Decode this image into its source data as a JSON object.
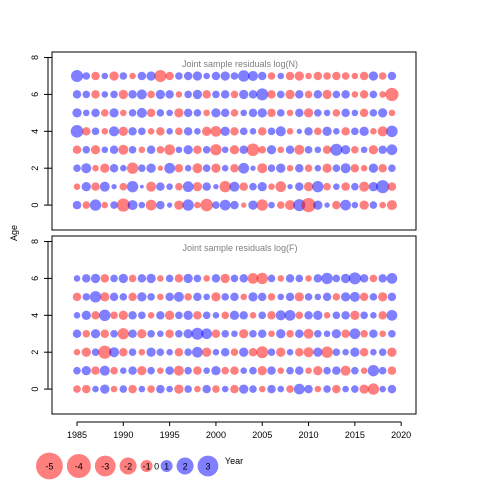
{
  "chart_data": {
    "type": "scatter",
    "ylabel": "Age",
    "xlabel": "Year",
    "x_ticks": [
      1985,
      1990,
      1995,
      2000,
      2005,
      2010,
      2015,
      2020
    ],
    "y_ticks": [
      0,
      2,
      4,
      6,
      8
    ],
    "xlim": [
      1982.3,
      2021.6
    ],
    "ylim": [
      -1.35,
      8.3
    ],
    "colors": {
      "positive": "#0000FF",
      "negative": "#FF0000"
    },
    "panels": [
      {
        "title": "Joint sample residuals log(N)",
        "ages": [
          0,
          1,
          2,
          3,
          4,
          5,
          6,
          7
        ],
        "years": [
          1985,
          2019
        ],
        "residuals": [
          [
            0.5,
            -0.4,
            0.9,
            -0.3,
            0.4,
            -1.2,
            0.7,
            0.3,
            -0.8,
            0.5,
            0.2,
            -0.6,
            0.9,
            -0.3,
            -1.1,
            0.4,
            0.8,
            0.5,
            -0.2,
            0.6,
            -0.9,
            0.3,
            -0.4,
            -0.7,
            1.0,
            -1.4,
            0.6,
            0.2,
            -0.5,
            0.8,
            0.3,
            -0.6,
            0.4,
            -0.3,
            -0.7
          ],
          [
            -0.3,
            0.6,
            -0.5,
            0.7,
            0.2,
            -0.4,
            0.9,
            0.1,
            -0.7,
            0.5,
            0.3,
            -0.4,
            0.8,
            -0.6,
            0.5,
            0.2,
            -0.9,
            0.7,
            -0.5,
            0.4,
            0.6,
            -0.3,
            -0.8,
            0.2,
            0.5,
            -0.6,
            0.9,
            -0.4,
            0.3,
            -0.5,
            0.4,
            -0.7,
            0.6,
            1.2,
            -0.5
          ],
          [
            0.4,
            0.7,
            -0.3,
            -0.6,
            0.5,
            0.3,
            -0.9,
            0.4,
            0.6,
            -0.2,
            0.8,
            -0.5,
            0.3,
            -0.7,
            0.4,
            -0.6,
            0.3,
            -0.5,
            0.8,
            0.2,
            -0.7,
            0.4,
            0.6,
            -0.3,
            0.5,
            -0.4,
            0.3,
            -0.6,
            0.4,
            0.7,
            -0.5,
            -0.3,
            0.6,
            -0.5,
            0.4
          ],
          [
            -0.5,
            0.4,
            -0.6,
            0.3,
            0.5,
            -0.7,
            0.4,
            -0.3,
            0.5,
            -0.4,
            -0.8,
            0.3,
            0.6,
            -0.5,
            0.4,
            -0.9,
            0.3,
            -0.6,
            0.5,
            -1.1,
            -0.4,
            0.6,
            -0.3,
            0.5,
            -0.7,
            0.4,
            0.3,
            -0.5,
            1.0,
            0.6,
            -0.4,
            0.3,
            -0.6,
            0.5,
            0.8
          ],
          [
            1.1,
            -0.5,
            0.4,
            -0.3,
            0.7,
            -0.6,
            0.5,
            0.4,
            -0.3,
            -0.5,
            0.3,
            -0.4,
            0.5,
            0.3,
            -0.6,
            -0.8,
            0.6,
            -0.5,
            0.4,
            0.3,
            -0.5,
            0.4,
            0.7,
            -0.3,
            0.2,
            0.5,
            -0.4,
            0.6,
            0.3,
            -0.5,
            0.4,
            0.6,
            -0.3,
            -0.7,
            0.9
          ],
          [
            0.6,
            0.3,
            0.5,
            -0.4,
            0.6,
            -0.3,
            0.4,
            0.7,
            -0.5,
            0.4,
            0.3,
            -0.6,
            0.5,
            0.4,
            -0.3,
            0.6,
            0.5,
            -0.4,
            0.3,
            0.5,
            0.6,
            -0.5,
            0.4,
            -0.3,
            0.5,
            -0.6,
            0.4,
            0.3,
            -0.4,
            0.5,
            0.3,
            -0.5,
            0.4,
            0.6,
            -0.3
          ],
          [
            0.5,
            0.4,
            -0.5,
            0.3,
            0.4,
            -0.6,
            0.5,
            0.7,
            -0.4,
            0.6,
            0.5,
            -0.3,
            0.4,
            0.6,
            -0.5,
            0.4,
            0.5,
            -0.4,
            0.6,
            0.5,
            1.0,
            -0.5,
            0.4,
            -0.6,
            0.5,
            -0.4,
            0.5,
            -0.6,
            0.4,
            0.5,
            -0.3,
            -0.5,
            0.4,
            -0.3,
            -1.2
          ],
          [
            1.0,
            0.4,
            -0.5,
            0.3,
            -0.6,
            0.4,
            -0.3,
            0.5,
            0.6,
            -1.0,
            -0.5,
            0.4,
            0.5,
            0.6,
            0.3,
            0.5,
            0.6,
            0.4,
            0.9,
            0.7,
            0.5,
            -0.4,
            0.3,
            -0.5,
            -0.6,
            -0.3,
            -0.5,
            -0.4,
            -0.5,
            -0.4,
            -0.3,
            -0.5,
            0.6,
            -0.4,
            0.5
          ]
        ]
      },
      {
        "title": "Joint sample residuals log(F)",
        "ages": [
          0,
          1,
          2,
          3,
          4,
          5,
          6
        ],
        "years": [
          1985,
          2019
        ],
        "residuals": [
          [
            -0.4,
            -0.5,
            0.3,
            0.6,
            -0.3,
            0.4,
            -0.5,
            0.3,
            -0.4,
            0.5,
            0.3,
            -0.6,
            0.4,
            -0.3,
            0.5,
            -0.4,
            0.3,
            -0.5,
            0.6,
            0.4,
            -0.3,
            0.5,
            0.3,
            -0.4,
            0.8,
            0.5,
            -0.3,
            0.4,
            -0.5,
            0.3,
            0.4,
            -0.6,
            -0.9,
            0.3,
            0.5
          ],
          [
            0.4,
            0.6,
            -0.5,
            0.7,
            -0.4,
            0.3,
            0.5,
            -0.6,
            0.4,
            -0.3,
            0.5,
            -0.7,
            0.4,
            -0.5,
            0.3,
            0.6,
            -0.4,
            -0.5,
            0.3,
            0.4,
            -0.6,
            0.5,
            -0.3,
            0.4,
            0.5,
            -0.3,
            -0.6,
            0.4,
            0.5,
            -0.7,
            0.4,
            -0.3,
            0.9,
            0.4,
            -0.5
          ],
          [
            -0.3,
            -0.6,
            0.4,
            -1.2,
            0.7,
            -0.5,
            0.4,
            -0.3,
            0.6,
            0.4,
            0.3,
            -0.5,
            0.4,
            0.8,
            -0.6,
            0.3,
            0.5,
            -0.4,
            0.6,
            -0.5,
            -1.0,
            0.4,
            -0.6,
            0.3,
            -0.5,
            -0.7,
            0.6,
            -0.9,
            0.4,
            0.3,
            0.6,
            -0.5,
            0.3,
            0.4,
            -0.6
          ],
          [
            0.5,
            -0.4,
            0.6,
            -0.5,
            0.4,
            -0.9,
            0.5,
            -0.6,
            0.4,
            0.3,
            -0.5,
            0.4,
            0.6,
            1.0,
            0.8,
            -0.5,
            0.4,
            0.3,
            -0.6,
            0.4,
            0.5,
            -0.3,
            0.6,
            -0.4,
            0.5,
            -0.7,
            0.4,
            0.3,
            0.6,
            -0.5,
            0.8,
            -0.4,
            0.5,
            -0.3,
            0.4
          ],
          [
            0.3,
            0.6,
            -0.5,
            0.9,
            -0.4,
            -0.6,
            0.5,
            0.4,
            -0.3,
            0.5,
            -0.6,
            0.4,
            0.6,
            -0.5,
            0.4,
            0.3,
            -0.4,
            0.6,
            0.5,
            -0.3,
            0.4,
            -0.5,
            0.7,
            0.8,
            -0.4,
            0.5,
            0.6,
            -0.3,
            0.4,
            0.5,
            -0.6,
            0.4,
            0.3,
            -0.5,
            0.8
          ],
          [
            -0.5,
            0.4,
            0.9,
            -0.6,
            0.5,
            0.4,
            -0.5,
            0.6,
            0.4,
            -0.3,
            0.5,
            0.7,
            -0.4,
            0.5,
            0.3,
            -0.6,
            0.4,
            0.5,
            -0.3,
            0.6,
            0.5,
            -0.4,
            0.3,
            0.5,
            -0.6,
            0.4,
            0.3,
            0.5,
            -0.4,
            0.6,
            0.7,
            -0.5,
            0.4,
            -0.6,
            0.5
          ],
          [
            0.3,
            0.5,
            0.6,
            -0.5,
            0.4,
            0.6,
            -0.4,
            0.5,
            0.6,
            -0.3,
            0.4,
            -0.5,
            0.6,
            0.4,
            -0.3,
            0.5,
            -0.6,
            0.4,
            0.5,
            -0.8,
            -0.9,
            0.4,
            -0.3,
            0.5,
            0.4,
            -0.3,
            0.5,
            0.9,
            0.4,
            0.6,
            1.0,
            0.5,
            -0.4,
            0.5,
            0.8
          ]
        ]
      }
    ],
    "legend": {
      "values": [
        -5,
        -4,
        -3,
        -2,
        -1,
        0,
        1,
        2,
        3
      ],
      "placement": "bottom-left"
    }
  }
}
